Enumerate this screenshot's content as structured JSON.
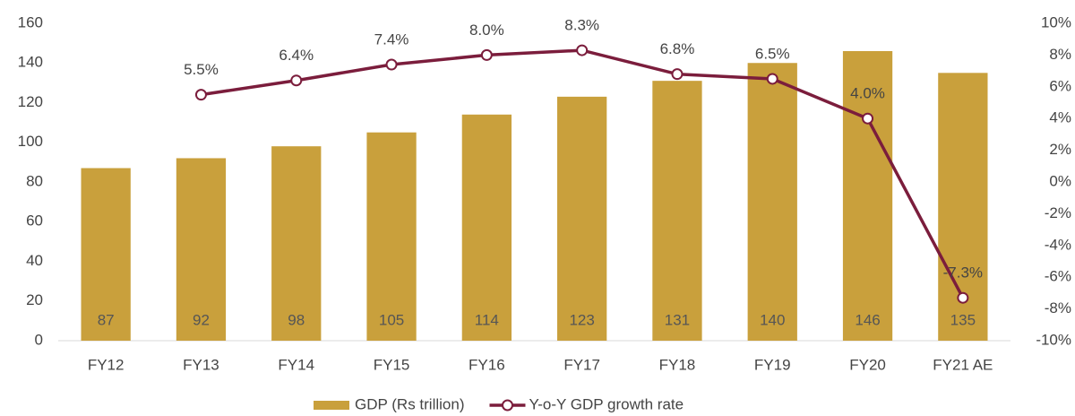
{
  "chart_data": {
    "type": "bar",
    "categories": [
      "FY12",
      "FY13",
      "FY14",
      "FY15",
      "FY16",
      "FY17",
      "FY18",
      "FY19",
      "FY20",
      "FY21 AE"
    ],
    "series": [
      {
        "name": "GDP (Rs trillion)",
        "type": "bar",
        "color": "#c9a03c",
        "values": [
          87,
          92,
          98,
          105,
          114,
          123,
          131,
          140,
          146,
          135
        ]
      },
      {
        "name": "Y-o-Y GDP growth rate",
        "type": "line",
        "axis": "y2",
        "color": "#7b1d3c",
        "values": [
          null,
          5.5,
          6.4,
          7.4,
          8.0,
          8.3,
          6.8,
          6.5,
          4.0,
          -7.3
        ],
        "value_labels": [
          null,
          "5.5%",
          "6.4%",
          "7.4%",
          "8.0%",
          "8.3%",
          "6.8%",
          "6.5%",
          "4.0%",
          "-7.3%"
        ]
      }
    ],
    "ylim": [
      0,
      160
    ],
    "yticks": [
      0,
      20,
      40,
      60,
      80,
      100,
      120,
      140,
      160
    ],
    "y2lim": [
      -10,
      10
    ],
    "y2ticks": [
      {
        "value": -10,
        "label": "-10%"
      },
      {
        "value": -8,
        "label": "-8%"
      },
      {
        "value": -6,
        "label": "-6%"
      },
      {
        "value": -4,
        "label": "-4%"
      },
      {
        "value": -2,
        "label": "-2%"
      },
      {
        "value": 0,
        "label": "0%"
      },
      {
        "value": 2,
        "label": "2%"
      },
      {
        "value": 4,
        "label": "4%"
      },
      {
        "value": 6,
        "label": "6%"
      },
      {
        "value": 8,
        "label": "8%"
      },
      {
        "value": 10,
        "label": "10%"
      }
    ],
    "legend": "bottom"
  }
}
